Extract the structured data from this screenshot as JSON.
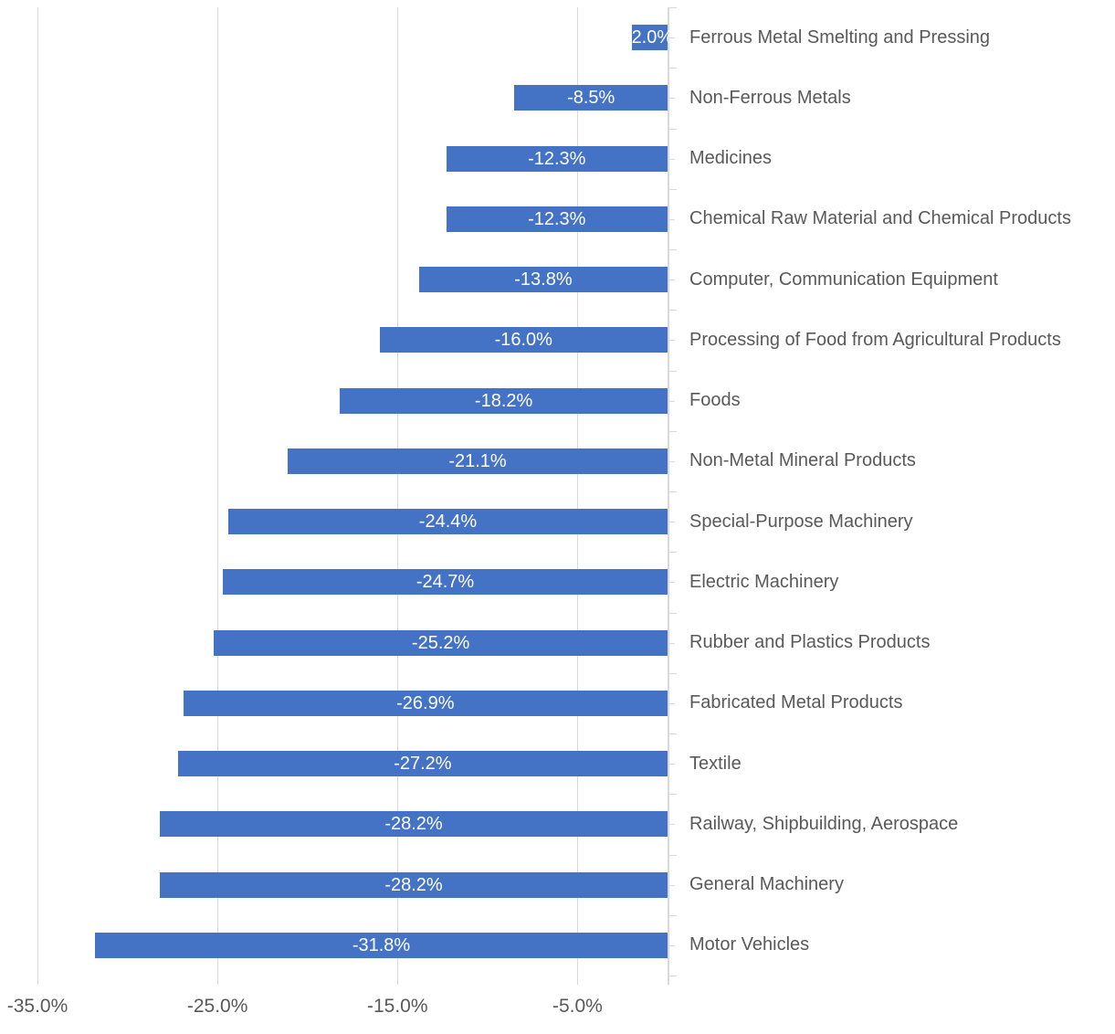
{
  "chart_data": {
    "type": "bar",
    "orientation": "horizontal",
    "title": "",
    "xlabel": "",
    "ylabel": "",
    "xlim": [
      -35,
      0
    ],
    "grid": true,
    "legend": false,
    "categories": [
      "Ferrous Metal Smelting and Pressing",
      "Non-Ferrous Metals",
      "Medicines",
      "Chemical Raw Material and Chemical Products",
      "Computer, Communication Equipment",
      "Processing of Food from Agricultural Products",
      "Foods",
      "Non-Metal Mineral Products",
      "Special-Purpose Machinery",
      "Electric Machinery",
      "Rubber and Plastics Products",
      "Fabricated Metal Products",
      "Textile",
      "Railway, Shipbuilding, Aerospace",
      "General Machinery",
      "Motor Vehicles"
    ],
    "values": [
      2.0,
      -8.5,
      -12.3,
      -12.3,
      -13.8,
      -16.0,
      -18.2,
      -21.1,
      -24.4,
      -24.7,
      -25.2,
      -26.9,
      -27.2,
      -28.2,
      -28.2,
      -31.8
    ],
    "data_labels": [
      "2.0%",
      "-8.5%",
      "-12.3%",
      "-12.3%",
      "-13.8%",
      "-16.0%",
      "-18.2%",
      "-21.1%",
      "-24.4%",
      "-24.7%",
      "-25.2%",
      "-26.9%",
      "-27.2%",
      "-28.2%",
      "-28.2%",
      "-31.8%"
    ],
    "x_tick_values": [
      -35,
      -25,
      -15,
      -5
    ],
    "x_tick_labels": [
      "-35.0%",
      "-25.0%",
      "-15.0%",
      "-5.0%"
    ],
    "colors": {
      "bar": "#4472C4",
      "data_label": "#FFFFFF",
      "axis_text": "#595959",
      "gridline": "#D9D9D9",
      "axis_line": "#D9D9D9"
    }
  }
}
